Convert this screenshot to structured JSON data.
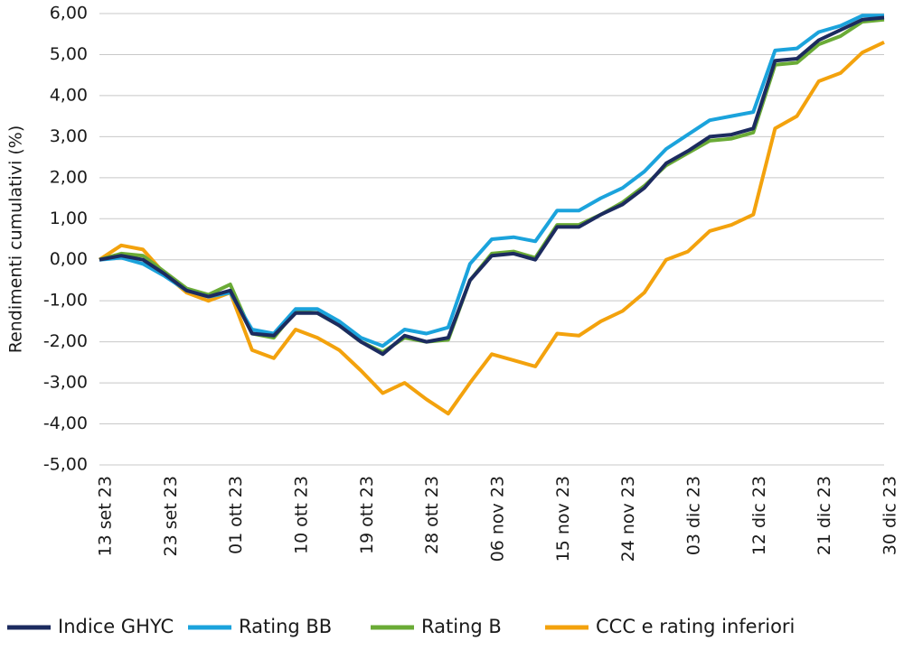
{
  "chart_data": {
    "type": "line",
    "y_label": "Rendimenti cumulativi (%)",
    "categories": [
      "13 set 23",
      null,
      null,
      "23 set 23",
      null,
      null,
      "01 ott 23",
      null,
      null,
      "10 ott 23",
      null,
      null,
      "19 ott 23",
      null,
      null,
      "28 ott 23",
      null,
      null,
      "06 nov 23",
      null,
      null,
      "15 nov 23",
      null,
      null,
      "24 nov 23",
      null,
      null,
      "03 dic 23",
      null,
      null,
      "12 dic 23",
      null,
      null,
      "21 dic 23",
      null,
      null,
      "30 dic 23"
    ],
    "series": [
      {
        "name": "Indice GHYC",
        "color": "#1c2b5f",
        "values": [
          0,
          0.1,
          0.0,
          -0.35,
          -0.75,
          -0.9,
          -0.75,
          -1.8,
          -1.85,
          -1.3,
          -1.3,
          -1.6,
          -2.0,
          -2.3,
          -1.85,
          -2.0,
          -1.9,
          -0.5,
          0.1,
          0.15,
          0.0,
          0.8,
          0.8,
          1.1,
          1.35,
          1.75,
          2.35,
          2.65,
          3.0,
          3.05,
          3.2,
          4.85,
          4.9,
          5.35,
          5.6,
          5.85,
          5.9
        ]
      },
      {
        "name": "Rating BB",
        "color": "#1ba3dc",
        "values": [
          0,
          0.05,
          -0.1,
          -0.4,
          -0.75,
          -0.9,
          -0.8,
          -1.7,
          -1.8,
          -1.2,
          -1.2,
          -1.5,
          -1.9,
          -2.1,
          -1.7,
          -1.8,
          -1.65,
          -0.1,
          0.5,
          0.55,
          0.45,
          1.2,
          1.2,
          1.5,
          1.75,
          2.15,
          2.7,
          3.05,
          3.4,
          3.5,
          3.6,
          5.1,
          5.15,
          5.55,
          5.7,
          5.95,
          5.95
        ]
      },
      {
        "name": "Rating B",
        "color": "#6aab36",
        "values": [
          0,
          0.15,
          0.1,
          -0.3,
          -0.7,
          -0.85,
          -0.6,
          -1.8,
          -1.9,
          -1.25,
          -1.3,
          -1.6,
          -2.0,
          -2.25,
          -1.9,
          -2.0,
          -1.95,
          -0.5,
          0.15,
          0.2,
          0.05,
          0.85,
          0.85,
          1.1,
          1.4,
          1.8,
          2.3,
          2.6,
          2.9,
          2.95,
          3.1,
          4.75,
          4.8,
          5.25,
          5.45,
          5.8,
          5.85
        ]
      },
      {
        "name": "CCC e rating inferiori",
        "color": "#f3a20d",
        "values": [
          0,
          0.35,
          0.25,
          -0.35,
          -0.8,
          -1.0,
          -0.8,
          -2.2,
          -2.4,
          -1.7,
          -1.9,
          -2.2,
          -2.7,
          -3.25,
          -3.0,
          -3.4,
          -3.75,
          -3.0,
          -2.3,
          -2.45,
          -2.6,
          -1.8,
          -1.85,
          -1.5,
          -1.25,
          -0.8,
          0.0,
          0.2,
          0.7,
          0.85,
          1.1,
          3.2,
          3.5,
          4.35,
          4.55,
          5.05,
          5.3
        ]
      }
    ],
    "ylim": [
      -5,
      6
    ],
    "yticks": [
      {
        "value": -5,
        "label": "-5,00"
      },
      {
        "value": -4,
        "label": "-4,00"
      },
      {
        "value": -3,
        "label": "-3,00"
      },
      {
        "value": -2,
        "label": "-2,00"
      },
      {
        "value": -1,
        "label": "-1,00"
      },
      {
        "value": 0,
        "label": "0,00"
      },
      {
        "value": 1,
        "label": "1,00"
      },
      {
        "value": 2,
        "label": "2,00"
      },
      {
        "value": 3,
        "label": "3,00"
      },
      {
        "value": 4,
        "label": "4,00"
      },
      {
        "value": 5,
        "label": "5,00"
      },
      {
        "value": 6,
        "label": "6,00"
      }
    ],
    "grid": true,
    "legend": "bottom"
  }
}
